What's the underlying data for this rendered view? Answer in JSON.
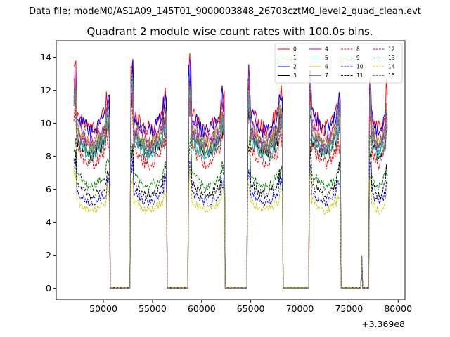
{
  "chart_data": {
    "type": "line",
    "suptitle": "Data file: modeM0/AS1A09_145T01_9000003848_26703cztM0_level2_quad_clean.evt",
    "title": "Quadrant 2 module wise count rates with 100.0s bins.",
    "xlabel": "",
    "ylabel": "",
    "x_offset_label": "+3.369e8",
    "xlim": [
      45200,
      80700
    ],
    "ylim": [
      -0.7,
      15
    ],
    "xticks": [
      50000,
      55000,
      60000,
      65000,
      70000,
      75000,
      80000
    ],
    "xtick_labels": [
      "50000",
      "55000",
      "60000",
      "65000",
      "70000",
      "75000",
      "80000"
    ],
    "yticks": [
      0,
      2,
      4,
      6,
      8,
      10,
      12,
      14
    ],
    "ytick_labels": [
      "0",
      "2",
      "4",
      "6",
      "8",
      "10",
      "12",
      "14"
    ],
    "legend_position": "top-right",
    "observation_windows": [
      [
        47000,
        50600
      ],
      [
        52800,
        56400
      ],
      [
        58700,
        62300
      ],
      [
        64700,
        68200
      ],
      [
        71000,
        74100
      ],
      [
        77100,
        78900
      ]
    ],
    "gap_spikes": [
      [
        76300,
        2.0
      ]
    ],
    "series": [
      {
        "name": "0",
        "color": "#ff0000",
        "dash": "solid",
        "base": 10.2,
        "peak": 13.6
      },
      {
        "name": "1",
        "color": "#008000",
        "dash": "solid",
        "base": 9.0,
        "peak": 12.6
      },
      {
        "name": "2",
        "color": "#0000ff",
        "dash": "solid",
        "base": 10.0,
        "peak": 13.2
      },
      {
        "name": "3",
        "color": "#000000",
        "dash": "solid",
        "base": 8.6,
        "peak": 12.0
      },
      {
        "name": "4",
        "color": "#bf00bf",
        "dash": "solid",
        "base": 9.4,
        "peak": 12.8
      },
      {
        "name": "5",
        "color": "#20b2aa",
        "dash": "solid",
        "base": 8.4,
        "peak": 11.8
      },
      {
        "name": "6",
        "color": "#d4b000",
        "dash": "solid",
        "base": 9.2,
        "peak": 12.4
      },
      {
        "name": "7",
        "color": "#808080",
        "dash": "solid",
        "base": 8.8,
        "peak": 12.2
      },
      {
        "name": "8",
        "color": "#ff0000",
        "dash": "dashed",
        "base": 8.0,
        "peak": 11.6
      },
      {
        "name": "9",
        "color": "#008000",
        "dash": "dashed",
        "base": 6.5,
        "peak": 9.2
      },
      {
        "name": "10",
        "color": "#0000ff",
        "dash": "dashed",
        "base": 5.5,
        "peak": 8.0
      },
      {
        "name": "11",
        "color": "#000000",
        "dash": "dashed",
        "base": 6.0,
        "peak": 8.6
      },
      {
        "name": "12",
        "color": "#bf00bf",
        "dash": "dashed",
        "base": 9.0,
        "peak": 12.4
      },
      {
        "name": "13",
        "color": "#20b2aa",
        "dash": "dashed",
        "base": 8.8,
        "peak": 12.2
      },
      {
        "name": "14",
        "color": "#c8c800",
        "dash": "dashed",
        "base": 5.0,
        "peak": 7.2
      },
      {
        "name": "15",
        "color": "#808080",
        "dash": "dashed",
        "base": 9.4,
        "peak": 12.6
      }
    ]
  }
}
